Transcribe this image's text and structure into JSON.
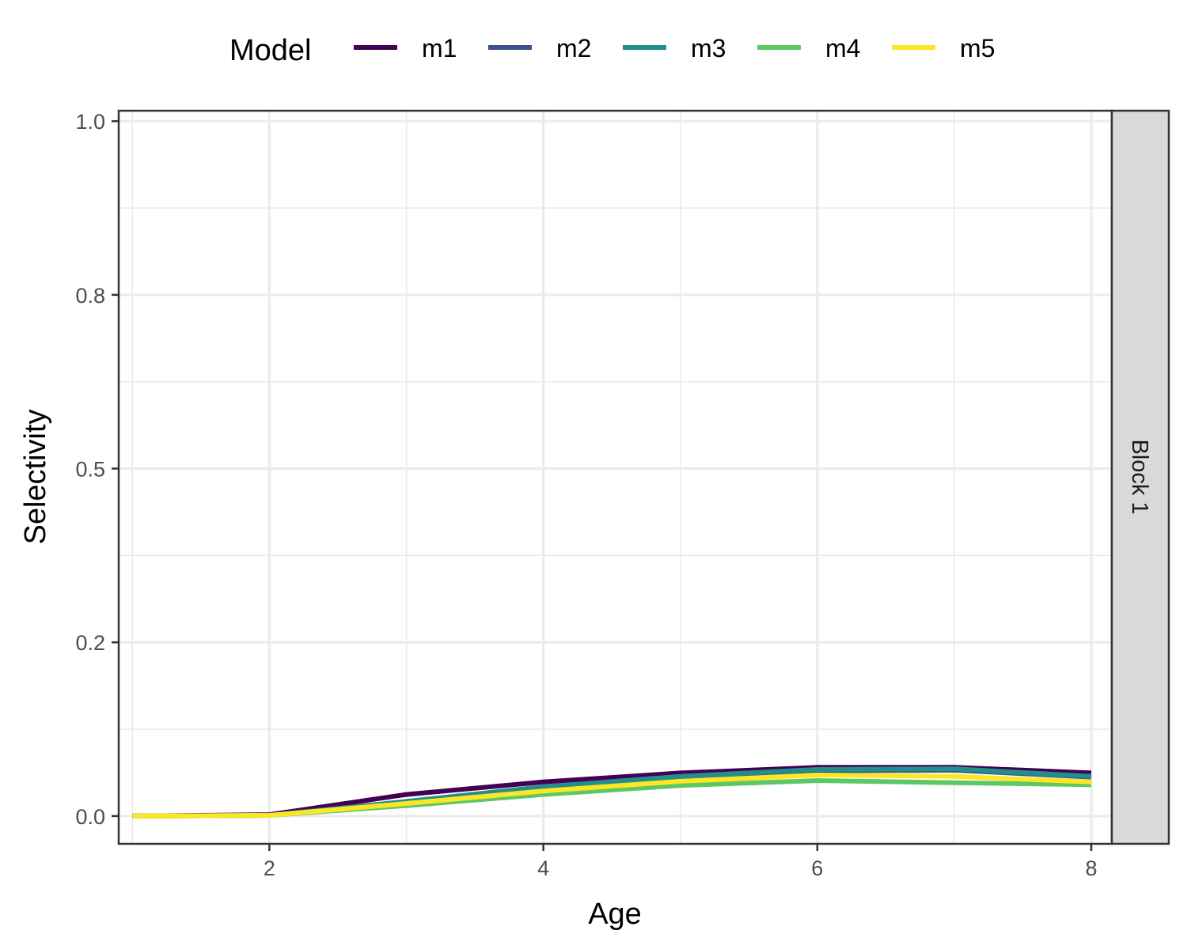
{
  "chart_data": {
    "type": "line",
    "xlabel": "Age",
    "ylabel": "Selectivity",
    "xlim": [
      0.9,
      8.15
    ],
    "ylim": [
      -0.04,
      1.015
    ],
    "x_ticks": [
      2,
      4,
      6,
      8
    ],
    "x_tick_labels": [
      "2",
      "4",
      "6",
      "8"
    ],
    "y_ticks": [
      0.0,
      0.25,
      0.5,
      0.75,
      1.0
    ],
    "y_tick_labels": [
      "0.0",
      "0.2",
      "0.5",
      "0.8",
      "1.0"
    ],
    "grid": true,
    "legend": {
      "title": "Model",
      "position": "top"
    },
    "facet_label": "Block 1",
    "x": [
      1,
      2,
      3,
      4,
      5,
      6,
      7,
      8
    ],
    "series": [
      {
        "name": "m1",
        "color": "#440154",
        "values": [
          0.0,
          0.002,
          0.031,
          0.049,
          0.062,
          0.07,
          0.07,
          0.062
        ]
      },
      {
        "name": "m2",
        "color": "#3B528B",
        "values": [
          0.0,
          0.001,
          0.02,
          0.041,
          0.055,
          0.065,
          0.066,
          0.056
        ]
      },
      {
        "name": "m3",
        "color": "#21908C",
        "values": [
          0.0,
          0.001,
          0.021,
          0.042,
          0.057,
          0.067,
          0.068,
          0.057
        ]
      },
      {
        "name": "m4",
        "color": "#5DC863",
        "values": [
          0.0,
          0.001,
          0.015,
          0.031,
          0.044,
          0.051,
          0.048,
          0.045
        ]
      },
      {
        "name": "m5",
        "color": "#FDE725",
        "values": [
          0.0,
          0.001,
          0.018,
          0.036,
          0.05,
          0.059,
          0.057,
          0.049
        ]
      }
    ]
  }
}
